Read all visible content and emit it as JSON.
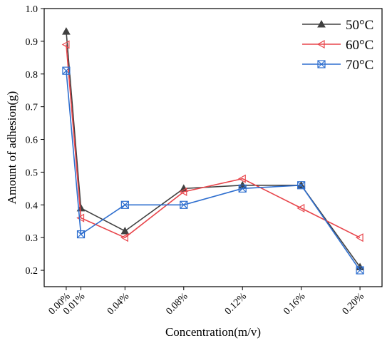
{
  "chart_data": {
    "type": "line",
    "title": "",
    "xlabel": "Concentration(m/v)",
    "ylabel": "Amount of adhesion(g)",
    "x_positions": [
      0.0,
      0.01,
      0.04,
      0.08,
      0.12,
      0.16,
      0.2
    ],
    "categories": [
      "0.00%",
      "0.01%",
      "0.04%",
      "0.08%",
      "0.12%",
      "0.16%",
      "0.20%"
    ],
    "ylim": [
      0.15,
      1.0
    ],
    "yticks": [
      "0.2",
      "0.3",
      "0.4",
      "0.5",
      "0.6",
      "0.7",
      "0.8",
      "0.9",
      "1.0"
    ],
    "xlim": [
      -0.015,
      0.215
    ],
    "grid": false,
    "legend_position": "top-right",
    "series": [
      {
        "name": "50°C",
        "color": "#404040",
        "marker": "triangle-up",
        "values": [
          0.93,
          0.39,
          0.32,
          0.45,
          0.46,
          0.46,
          0.21
        ]
      },
      {
        "name": "60°C",
        "color": "#e8454b",
        "marker": "triangle-left",
        "values": [
          0.89,
          0.36,
          0.3,
          0.44,
          0.48,
          0.39,
          0.3
        ]
      },
      {
        "name": "70°C",
        "color": "#2f6fcf",
        "marker": "x-box",
        "values": [
          0.81,
          0.31,
          0.4,
          0.4,
          0.45,
          0.46,
          0.2
        ]
      }
    ]
  }
}
